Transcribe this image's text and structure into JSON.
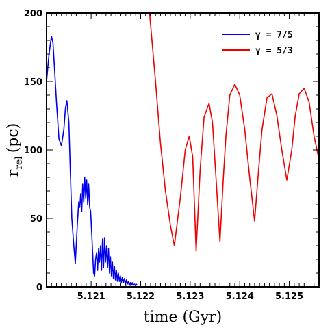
{
  "chart_data": {
    "type": "line",
    "xlabel": "time (Gyr)",
    "ylabel_main": "r",
    "ylabel_sub": "rel",
    "ylabel_unit": "(pc)",
    "xlim": [
      5.1201,
      5.1256
    ],
    "ylim": [
      0,
      200
    ],
    "xticks": [
      {
        "value": 5.121,
        "label": "5.121"
      },
      {
        "value": 5.122,
        "label": "5.122"
      },
      {
        "value": 5.123,
        "label": "5.123"
      },
      {
        "value": 5.124,
        "label": "5.124"
      },
      {
        "value": 5.125,
        "label": "5.125"
      }
    ],
    "yticks": [
      {
        "value": 0,
        "label": "0"
      },
      {
        "value": 50,
        "label": "50"
      },
      {
        "value": 100,
        "label": "100"
      },
      {
        "value": 150,
        "label": "150"
      },
      {
        "value": 200,
        "label": "200"
      }
    ],
    "grid": false,
    "legend_position": "top-right",
    "series": [
      {
        "name": "γ = 7/5",
        "color": "#0000ee",
        "x": [
          5.1201,
          5.12015,
          5.1202,
          5.12023,
          5.12026,
          5.1203,
          5.12035,
          5.1204,
          5.12045,
          5.12048,
          5.12051,
          5.12055,
          5.12058,
          5.12061,
          5.12065,
          5.12068,
          5.12072,
          5.12075,
          5.12077,
          5.12079,
          5.12081,
          5.12083,
          5.12085,
          5.12087,
          5.12089,
          5.12091,
          5.12093,
          5.12095,
          5.12097,
          5.12099,
          5.12101,
          5.12103,
          5.12105,
          5.12107,
          5.12109,
          5.12111,
          5.12113,
          5.12115,
          5.12117,
          5.12119,
          5.12121,
          5.12123,
          5.12125,
          5.12127,
          5.12129,
          5.12131,
          5.12133,
          5.12135,
          5.12137,
          5.12139,
          5.12141,
          5.12143,
          5.12145,
          5.12147,
          5.12149,
          5.12151,
          5.12153,
          5.12155,
          5.12157,
          5.12159,
          5.12161,
          5.12163,
          5.12165,
          5.12167,
          5.12169,
          5.12171,
          5.12173,
          5.12175,
          5.12177,
          5.12179,
          5.12181,
          5.12183,
          5.12185,
          5.12187,
          5.12189,
          5.12191,
          5.12193
        ],
        "y": [
          150,
          170,
          183,
          178,
          160,
          135,
          108,
          103,
          115,
          130,
          136,
          120,
          85,
          50,
          30,
          17,
          45,
          62,
          58,
          68,
          55,
          75,
          62,
          80,
          65,
          78,
          60,
          75,
          58,
          55,
          40,
          25,
          10,
          8,
          20,
          25,
          12,
          28,
          18,
          30,
          12,
          35,
          14,
          36,
          18,
          30,
          14,
          28,
          10,
          22,
          8,
          18,
          6,
          15,
          5,
          12,
          4,
          10,
          4,
          8,
          3,
          7,
          3,
          6,
          2,
          5,
          2,
          4,
          1,
          3,
          1,
          3,
          1,
          2,
          1,
          2,
          1
        ]
      },
      {
        "name": "γ = 5/3",
        "color": "#ee0000",
        "x": [
          5.12218,
          5.1223,
          5.1224,
          5.1225,
          5.1226,
          5.12268,
          5.1228,
          5.1229,
          5.12298,
          5.12305,
          5.12312,
          5.1232,
          5.12328,
          5.12338,
          5.12345,
          5.12352,
          5.1236,
          5.12367,
          5.12372,
          5.1238,
          5.1239,
          5.124,
          5.1241,
          5.1242,
          5.1243,
          5.12438,
          5.12445,
          5.12455,
          5.12465,
          5.12475,
          5.12485,
          5.12495,
          5.12505,
          5.12512,
          5.1252,
          5.1253,
          5.1254,
          5.1255,
          5.1256
        ],
        "y": [
          200,
          150,
          105,
          70,
          45,
          30,
          65,
          100,
          110,
          95,
          26,
          85,
          124,
          134,
          120,
          80,
          33,
          80,
          110,
          140,
          148,
          140,
          115,
          80,
          48,
          85,
          115,
          138,
          141,
          125,
          100,
          78,
          100,
          125,
          141,
          145,
          135,
          110,
          93
        ]
      }
    ]
  }
}
